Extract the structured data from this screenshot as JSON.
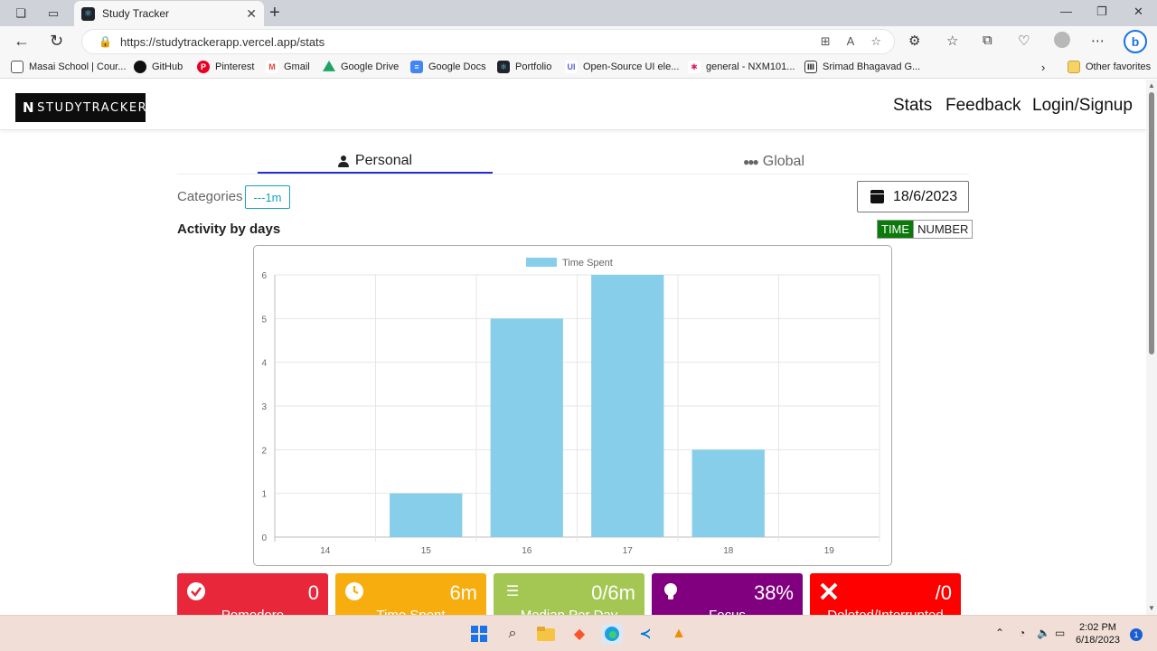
{
  "browser": {
    "tab_title": "Study Tracker",
    "url": "https://studytrackerapp.vercel.app/stats",
    "bookmarks": [
      {
        "label": "Masai School | Cour...",
        "icon": "page-icon",
        "color": "#555555"
      },
      {
        "label": "GitHub",
        "icon": "github-icon",
        "color": "#111111"
      },
      {
        "label": "Pinterest",
        "icon": "pinterest-icon",
        "color": "#e60023"
      },
      {
        "label": "Gmail",
        "icon": "gmail-icon",
        "color": "#ea4335"
      },
      {
        "label": "Google Drive",
        "icon": "drive-icon",
        "color": "#1fa463"
      },
      {
        "label": "Google Docs",
        "icon": "docs-icon",
        "color": "#4285f4"
      },
      {
        "label": "Portfolio",
        "icon": "react-icon",
        "color": "#20232a"
      },
      {
        "label": "Open-Source UI ele...",
        "icon": "ui-icon",
        "color": "#5b5bd6"
      },
      {
        "label": "general - NXM101...",
        "icon": "slack-icon",
        "color": "#e01e5a"
      },
      {
        "label": "Srimad Bhagavad G...",
        "icon": "temple-icon",
        "color": "#333333"
      }
    ],
    "other_favorites": "Other favorites"
  },
  "app": {
    "logo_text": "STUDYTRACKER",
    "nav": [
      "Stats",
      "Feedback",
      "Login/Signup"
    ],
    "tabs": {
      "personal": "Personal",
      "global": "Global"
    },
    "categories_label": "Categories",
    "category_chip": "---1m",
    "date": "18/6/2023",
    "section_title": "Activity by days",
    "toggle": {
      "active": "TIME",
      "inactive": "NUMBER"
    }
  },
  "chart_data": {
    "type": "bar",
    "legend": [
      "Time Spent"
    ],
    "categories": [
      "14",
      "15",
      "16",
      "17",
      "18",
      "19"
    ],
    "series": [
      {
        "name": "Time Spent",
        "values": [
          0,
          1,
          5,
          6,
          2,
          0
        ],
        "color": "#87ceeb"
      }
    ],
    "yticks": [
      "0",
      "1",
      "2",
      "3",
      "4",
      "5",
      "6"
    ],
    "ylim": [
      0,
      6
    ],
    "grid": true,
    "legend_position": "top"
  },
  "cards": [
    {
      "value": "0",
      "label": "Pomodoro",
      "icon": "check-circle-icon",
      "color": "#e8283a"
    },
    {
      "value": "6m",
      "label": "Time Spent",
      "icon": "clock-icon",
      "color": "#f7ad0d"
    },
    {
      "value": "0/6m",
      "label": "Median Per Day",
      "icon": "list-icon",
      "color": "#a4c652"
    },
    {
      "value": "38%",
      "label": "Focus",
      "icon": "lightbulb-icon",
      "color": "#800080"
    },
    {
      "value": "/0",
      "label": "Deleted/Interrupted",
      "icon": "x-icon",
      "color": "#ff0000"
    }
  ],
  "taskbar": {
    "time": "2:02 PM",
    "date": "6/18/2023",
    "notifications": "1"
  }
}
